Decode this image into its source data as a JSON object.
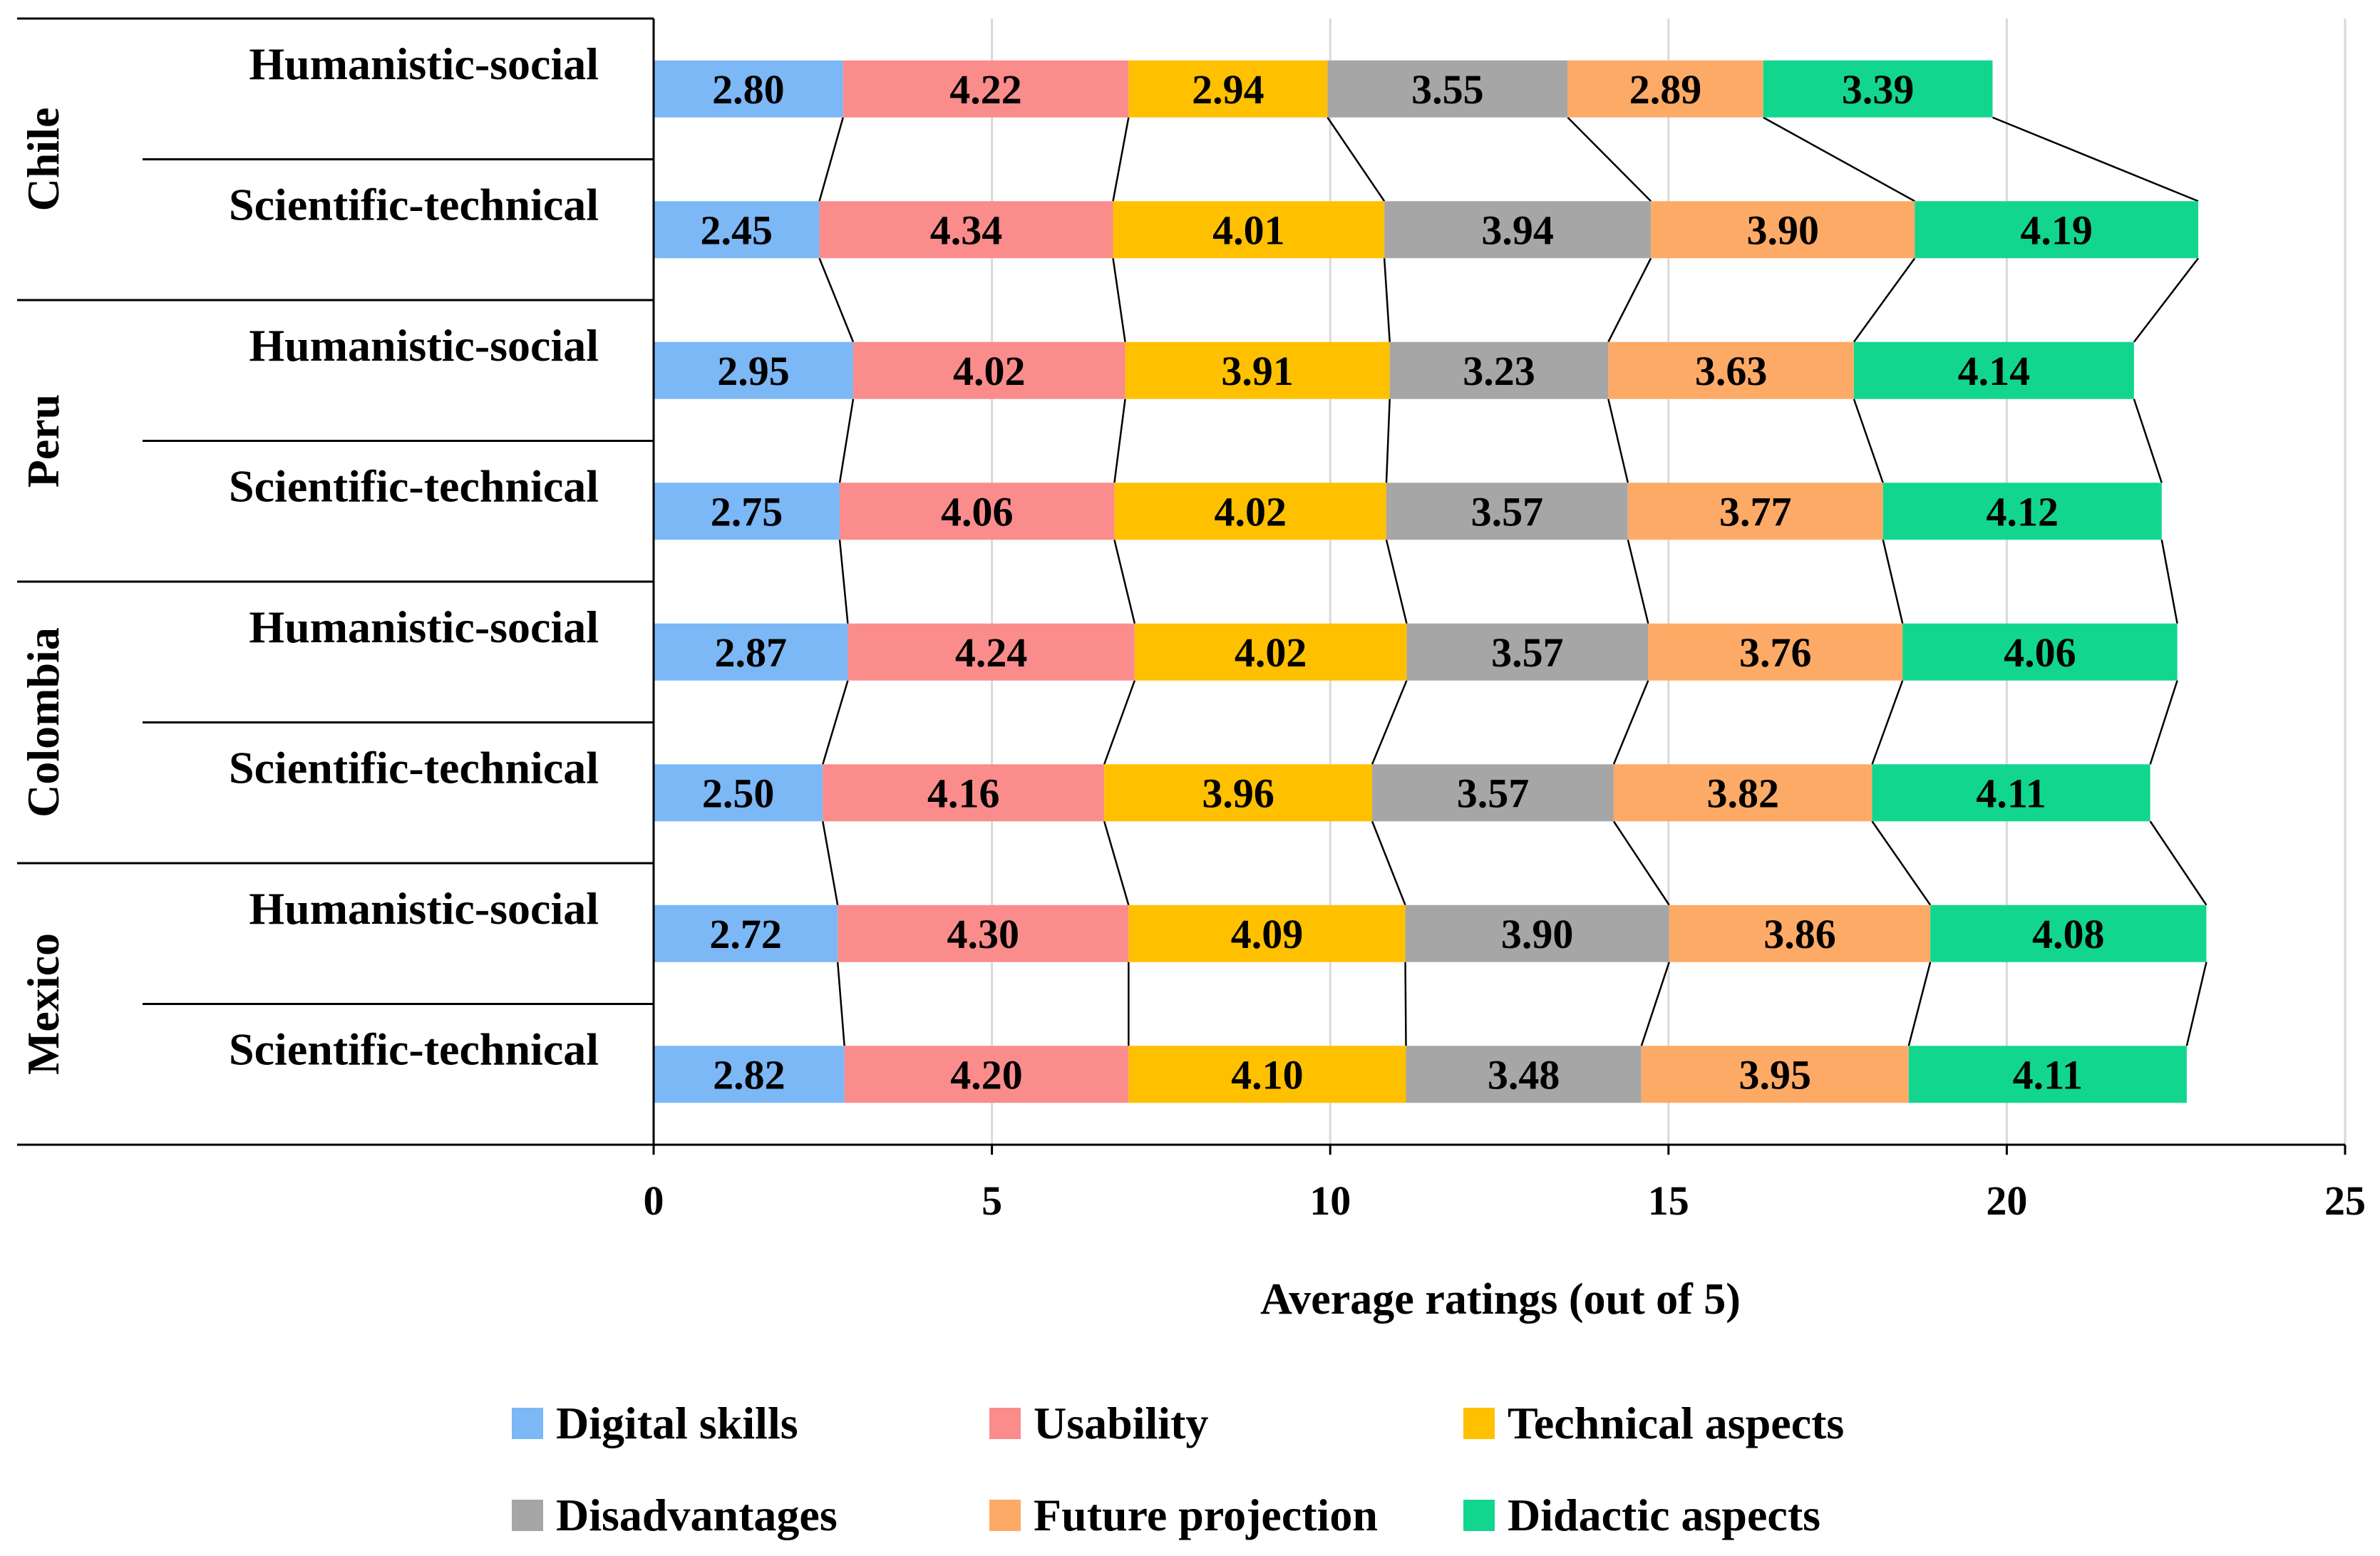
{
  "chart_data": {
    "type": "bar",
    "orientation": "horizontal",
    "stacked": true,
    "xlabel": "Average ratings (out of 5)",
    "xlim": [
      0,
      25
    ],
    "xticks": [
      "0",
      "5",
      "10",
      "15",
      "20",
      "25"
    ],
    "grid": true,
    "legend_position": "bottom",
    "groups": [
      {
        "name": "Chile",
        "categories": [
          "Humanistic-social",
          "Scientific-technical"
        ]
      },
      {
        "name": "Peru",
        "categories": [
          "Humanistic-social",
          "Scientific-technical"
        ]
      },
      {
        "name": "Colombia",
        "categories": [
          "Humanistic-social",
          "Scientific-technical"
        ]
      },
      {
        "name": "Mexico",
        "categories": [
          "Humanistic-social",
          "Scientific-technical"
        ]
      }
    ],
    "series": [
      {
        "name": "Digital skills",
        "color": "#7cb7f6",
        "values": [
          2.8,
          2.45,
          2.95,
          2.75,
          2.87,
          2.5,
          2.72,
          2.82
        ],
        "labels": [
          "2.80",
          "2.45",
          "2.95",
          "2.75",
          "2.87",
          "2.50",
          "2.72",
          "2.82"
        ]
      },
      {
        "name": "Usability",
        "color": "#fa8c8c",
        "values": [
          4.22,
          4.34,
          4.02,
          4.06,
          4.24,
          4.16,
          4.3,
          4.2
        ],
        "labels": [
          "4.22",
          "4.34",
          "4.02",
          "4.06",
          "4.24",
          "4.16",
          "4.30",
          "4.20"
        ]
      },
      {
        "name": "Technical aspects",
        "color": "#ffc000",
        "values": [
          2.94,
          4.01,
          3.91,
          4.02,
          4.02,
          3.96,
          4.09,
          4.1
        ],
        "labels": [
          "2.94",
          "4.01",
          "3.91",
          "4.02",
          "4.02",
          "3.96",
          "4.09",
          "4.10"
        ]
      },
      {
        "name": "Disadvantages",
        "color": "#a6a6a6",
        "values": [
          3.55,
          3.94,
          3.23,
          3.57,
          3.57,
          3.57,
          3.9,
          3.48
        ],
        "labels": [
          "3.55",
          "3.94",
          "3.23",
          "3.57",
          "3.57",
          "3.57",
          "3.90",
          "3.48"
        ]
      },
      {
        "name": "Future projection",
        "color": "#fdaa66",
        "values": [
          2.89,
          3.9,
          3.63,
          3.77,
          3.76,
          3.82,
          3.86,
          3.95
        ],
        "labels": [
          "2.89",
          "3.90",
          "3.63",
          "3.77",
          "3.76",
          "3.82",
          "3.86",
          "3.95"
        ]
      },
      {
        "name": "Didactic aspects",
        "color": "#12d68e",
        "values": [
          3.39,
          4.19,
          4.14,
          4.12,
          4.06,
          4.11,
          4.08,
          4.11
        ],
        "labels": [
          "3.39",
          "4.19",
          "4.14",
          "4.12",
          "4.06",
          "4.11",
          "4.08",
          "4.11"
        ]
      }
    ]
  }
}
